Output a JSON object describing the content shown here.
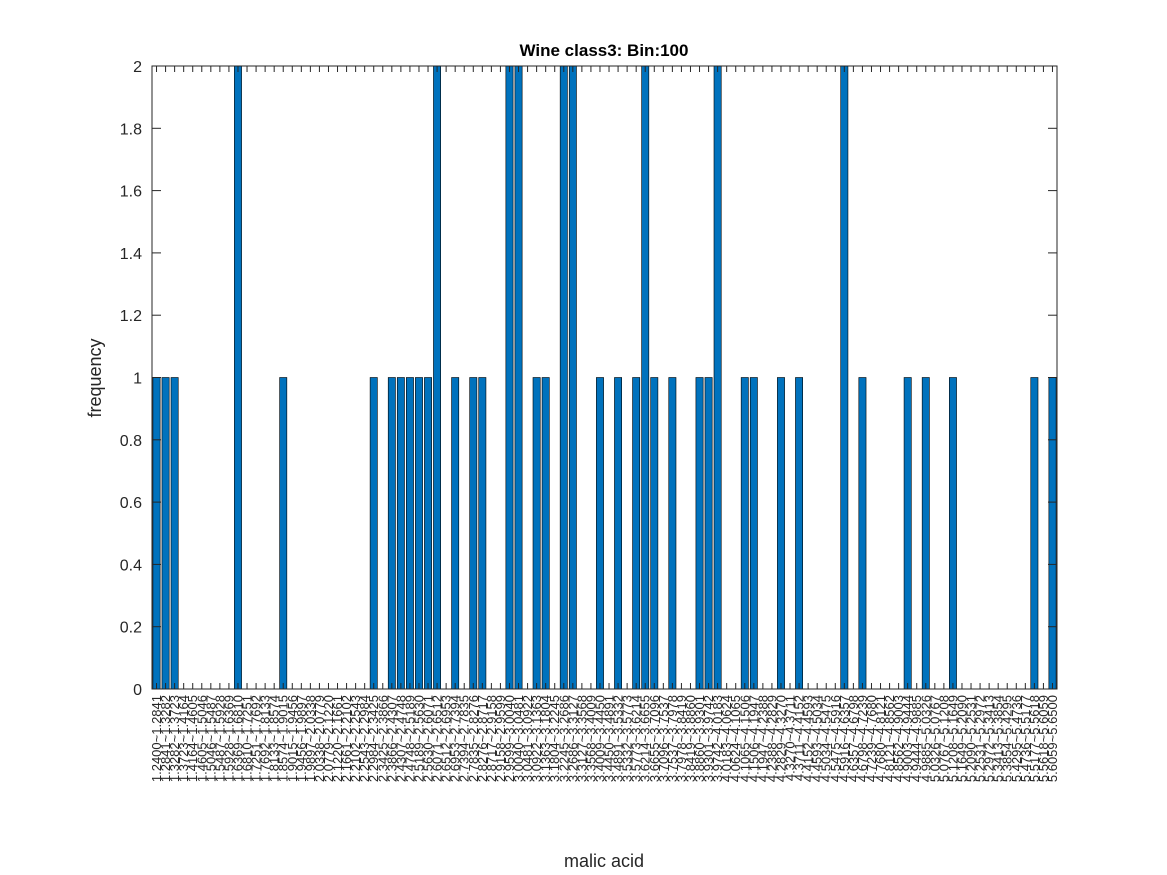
{
  "chart_data": {
    "type": "bar",
    "title": "Wine class3: Bin:100",
    "xlabel": "malic acid",
    "ylabel": "frequency",
    "ylim": [
      0,
      2
    ],
    "yticks": [
      "0",
      "0.2",
      "0.4",
      "0.6",
      "0.8",
      "1",
      "1.2",
      "1.4",
      "1.6",
      "1.8",
      "2"
    ],
    "grid": false,
    "bar_color": "#0072BD",
    "categories": [
      "1.2400~1.2841",
      "1.2841~1.3282",
      "1.3282~1.3723",
      "1.3723~1.4164",
      "1.4164~1.4605",
      "1.4605~1.5046",
      "1.5046~1.5487",
      "1.5487~1.5928",
      "1.5928~1.6369",
      "1.6369~1.6810",
      "1.6810~1.7251",
      "1.7251~1.7692",
      "1.7692~1.8133",
      "1.8133~1.8574",
      "1.8574~1.9015",
      "1.9015~1.9456",
      "1.9456~1.9897",
      "1.9897~2.0338",
      "2.0338~2.0779",
      "2.0779~2.1220",
      "2.1220~2.1661",
      "2.1661~2.2102",
      "2.2102~2.2543",
      "2.2543~2.2984",
      "2.2984~2.3425",
      "2.3425~2.3866",
      "2.3866~2.4307",
      "2.4307~2.4748",
      "2.4748~2.5189",
      "2.5189~2.5630",
      "2.5630~2.6071",
      "2.6071~2.6512",
      "2.6512~2.6953",
      "2.6953~2.7394",
      "2.7394~2.7835",
      "2.7835~2.8276",
      "2.8276~2.8717",
      "2.8717~2.9158",
      "2.9158~2.9599",
      "2.9599~3.0040",
      "3.0040~3.0481",
      "3.0481~3.0922",
      "3.0922~3.1363",
      "3.1363~3.1804",
      "3.1804~3.2245",
      "3.2245~3.2686",
      "3.2686~3.3127",
      "3.3127~3.3568",
      "3.3568~3.4009",
      "3.4009~3.4450",
      "3.4450~3.4891",
      "3.4891~3.5332",
      "3.5332~3.5773",
      "3.5773~3.6214",
      "3.6214~3.6655",
      "3.6655~3.7096",
      "3.7096~3.7537",
      "3.7537~3.7978",
      "3.7978~3.8419",
      "3.8419~3.8860",
      "3.8860~3.9301",
      "3.9301~3.9742",
      "3.9742~4.0183",
      "4.0183~4.0624",
      "4.0624~4.1065",
      "4.1065~4.1506",
      "4.1506~4.1947",
      "4.1947~4.2388",
      "4.2388~4.2829",
      "4.2829~4.3270",
      "4.3270~4.3711",
      "4.3711~4.4152",
      "4.4152~4.4593",
      "4.4593~4.5034",
      "4.5034~4.5475",
      "4.5475~4.5916",
      "4.5916~4.6357",
      "4.6357~4.6798",
      "4.6798~4.7239",
      "4.7239~4.7680",
      "4.7680~4.8121",
      "4.8121~4.8562",
      "4.8562~4.9003",
      "4.9003~4.9444",
      "4.9444~4.9885",
      "4.9885~5.0326",
      "5.0326~5.0767",
      "5.0767~5.1208",
      "5.1208~5.1649",
      "5.1649~5.2090",
      "5.2090~5.2531",
      "5.2531~5.2972",
      "5.2972~5.3413",
      "5.3413~5.3854",
      "5.3854~5.4295",
      "5.4295~5.4736",
      "5.4736~5.5177",
      "5.5177~5.5618",
      "5.5618~5.6059",
      "5.6059~5.6500"
    ],
    "values": [
      1,
      1,
      1,
      0,
      0,
      0,
      0,
      0,
      0,
      2,
      0,
      0,
      0,
      0,
      1,
      0,
      0,
      0,
      0,
      0,
      0,
      0,
      0,
      0,
      1,
      0,
      1,
      1,
      1,
      1,
      1,
      2,
      0,
      1,
      0,
      1,
      1,
      0,
      0,
      2,
      2,
      0,
      1,
      1,
      0,
      2,
      2,
      0,
      0,
      1,
      0,
      1,
      0,
      1,
      2,
      1,
      0,
      1,
      0,
      0,
      1,
      1,
      2,
      0,
      0,
      1,
      1,
      0,
      0,
      1,
      0,
      1,
      0,
      0,
      0,
      0,
      2,
      0,
      1,
      0,
      0,
      0,
      0,
      1,
      0,
      1,
      0,
      0,
      1,
      0,
      0,
      0,
      0,
      0,
      0,
      0,
      0,
      1,
      0,
      1
    ]
  }
}
